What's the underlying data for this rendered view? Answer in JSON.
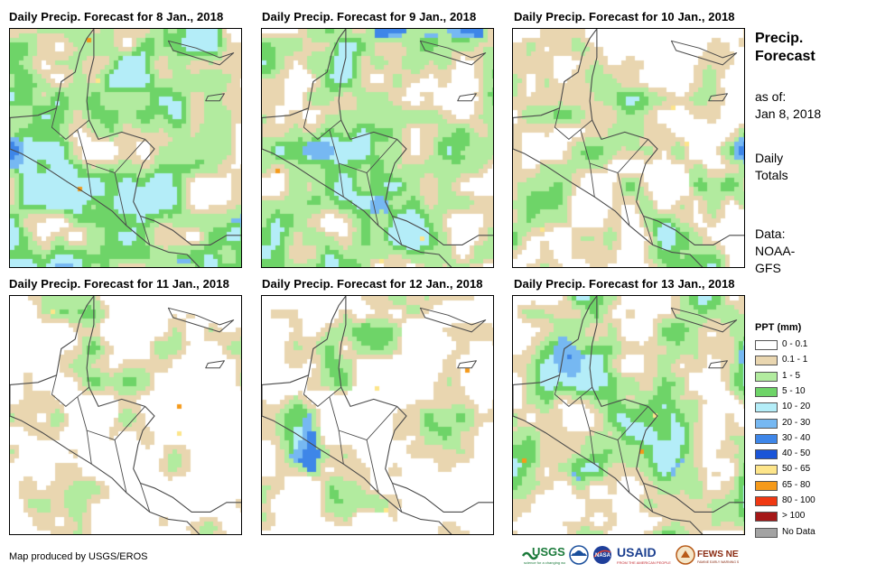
{
  "panels": [
    {
      "title": "Daily Precip. Forecast for 8 Jan., 2018",
      "seed": 11,
      "wet": 0.62,
      "heavy": 0.18
    },
    {
      "title": "Daily Precip. Forecast for 9 Jan., 2018",
      "seed": 23,
      "wet": 0.58,
      "heavy": 0.12
    },
    {
      "title": "Daily Precip. Forecast for 10 Jan., 2018",
      "seed": 37,
      "wet": 0.45,
      "heavy": 0.1
    },
    {
      "title": "Daily Precip. Forecast for 11 Jan., 2018",
      "seed": 41,
      "wet": 0.28,
      "heavy": 0.05
    },
    {
      "title": "Daily Precip. Forecast for 12 Jan., 2018",
      "seed": 53,
      "wet": 0.42,
      "heavy": 0.06
    },
    {
      "title": "Daily Precip. Forecast for 13 Jan., 2018",
      "seed": 67,
      "wet": 0.55,
      "heavy": 0.14
    }
  ],
  "side": {
    "title_line1": "Precip.",
    "title_line2": "Forecast",
    "asof_label": "as of:",
    "asof_date": "Jan 8, 2018",
    "totals_line1": "Daily",
    "totals_line2": "Totals",
    "data_line1": "Data:",
    "data_line2": "NOAA-",
    "data_line3": "GFS"
  },
  "legend": {
    "title": "PPT (mm)",
    "items": [
      {
        "label": "0 - 0.1",
        "color": "#ffffff"
      },
      {
        "label": "0.1 - 1",
        "color": "#e9d6b0"
      },
      {
        "label": "1 - 5",
        "color": "#b2eb9f"
      },
      {
        "label": "5 - 10",
        "color": "#6ed468"
      },
      {
        "label": "10 - 20",
        "color": "#b4edf8"
      },
      {
        "label": "20 - 30",
        "color": "#76b8f2"
      },
      {
        "label": "30 - 40",
        "color": "#3e86e8"
      },
      {
        "label": "40 - 50",
        "color": "#1a55d8"
      },
      {
        "label": "50 - 65",
        "color": "#fde58a"
      },
      {
        "label": "65 - 80",
        "color": "#f59a1a"
      },
      {
        "label": "80 - 100",
        "color": "#f03812"
      },
      {
        "label": "> 100",
        "color": "#a51818"
      },
      {
        "label": "No Data",
        "color": "#a3a3a3"
      }
    ]
  },
  "footer": {
    "credit": "Map produced by USGS/EROS",
    "logos": [
      "USGS",
      "NOAA",
      "NASA",
      "USAID",
      "FEWS NET"
    ]
  }
}
